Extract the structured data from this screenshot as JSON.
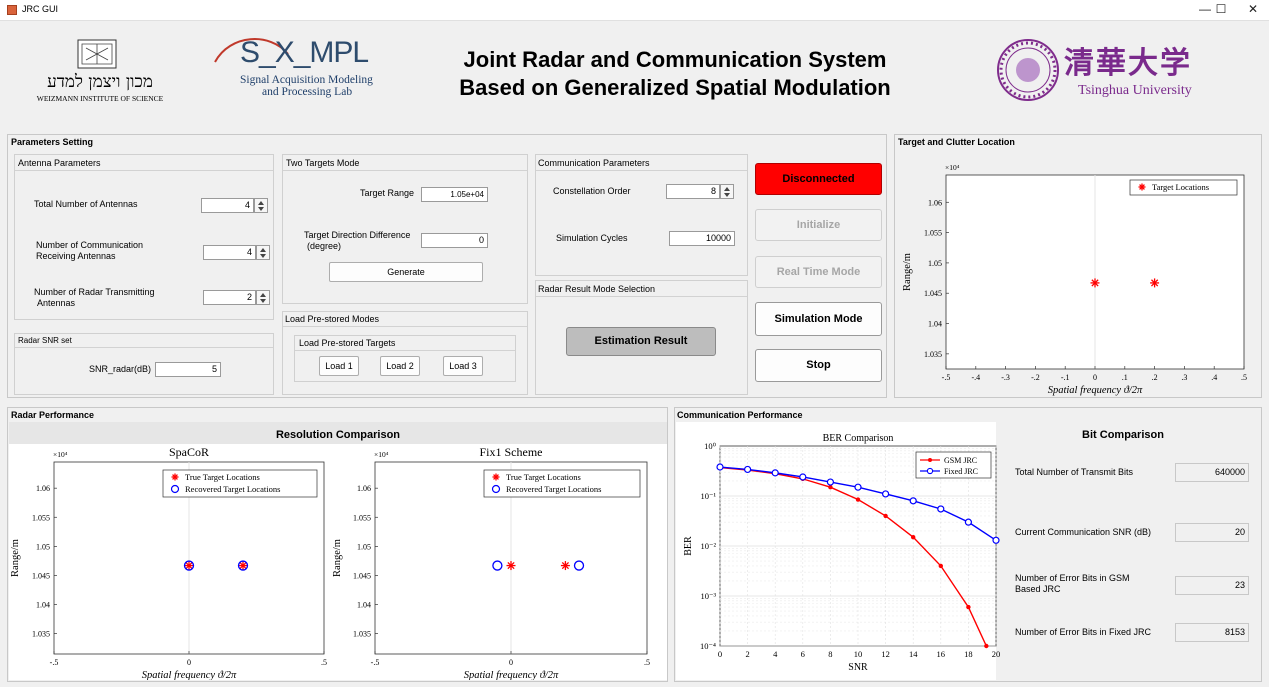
{
  "window": {
    "title": "JRC GUI",
    "minimize_glyph": "—",
    "maximize_glyph": "☐",
    "close_glyph": "✕"
  },
  "header": {
    "title_line1": "Joint Radar and Communication System",
    "title_line2": "Based on Generalized Spatial Modulation",
    "weizmann": {
      "hebrew": "מכון ויצמן למדע",
      "english": "WEIZMANN INSTITUTE OF SCIENCE"
    },
    "sampl": {
      "logo_text": "S_X_MPL",
      "line1": "Signal Acquisition Modeling",
      "line2": "and Processing Lab"
    },
    "tsinghua": {
      "chinese": "清華大学",
      "english": "Tsinghua University"
    }
  },
  "params": {
    "title": "Parameters Setting",
    "antenna": {
      "title": "Antenna Parameters",
      "total_label": "Total Number of Antennas",
      "total_value": "4",
      "comm_label_1": "Number of Communication",
      "comm_label_2": "Receiving Antennas",
      "comm_value": "4",
      "radar_label_1": "Number of Radar Transmitting",
      "radar_label_2": "Antennas",
      "radar_value": "2"
    },
    "snr": {
      "title": "Radar SNR set",
      "label": "SNR_radar(dB)",
      "value": "5"
    },
    "two_targets": {
      "title": "Two Targets Mode",
      "range_label": "Target Range",
      "range_value": "1.05e+04",
      "dir_label_1": "Target Direction Difference",
      "dir_label_2": "(degree)",
      "dir_value": "0",
      "generate_label": "Generate"
    },
    "prestored": {
      "title": "Load Pre-stored Modes",
      "inner_title": "Load Pre-stored Targets",
      "load1": "Load 1",
      "load2": "Load 2",
      "load3": "Load 3"
    },
    "comm": {
      "title": "Communication Parameters",
      "constellation_label": "Constellation Order",
      "constellation_value": "8",
      "cycles_label": "Simulation Cycles",
      "cycles_value": "10000"
    },
    "radar_mode": {
      "title": "Radar Result Mode Selection",
      "estimation_label": "Estimation Result"
    }
  },
  "controls": {
    "disconnected": "Disconnected",
    "initialize": "Initialize",
    "realtime": "Real Time Mode",
    "simulation": "Simulation Mode",
    "stop": "Stop",
    "disconnected_color": "#ff0000"
  },
  "target_clutter": {
    "title": "Target and Clutter Location"
  },
  "radar_perf": {
    "title": "Radar Performance",
    "resolution_title": "Resolution Comparison"
  },
  "comm_perf": {
    "title": "Communication Performance",
    "bit_comparison_title": "Bit Comparison",
    "total_bits_label": "Total Number of Transmit Bits",
    "total_bits_value": "640000",
    "snr_label": "Current Communication SNR (dB)",
    "snr_value": "20",
    "gsm_err_label_1": "Number of Error Bits in GSM",
    "gsm_err_label_2": "Based JRC",
    "gsm_err_value": "23",
    "fixed_err_label": "Number of Error Bits in Fixed JRC",
    "fixed_err_value": "8153"
  },
  "chart_data": [
    {
      "type": "scatter",
      "title": "",
      "xlabel": "Spatial frequency ϑ/2π",
      "ylabel": "Range/m",
      "y_multiplier_label": "×10⁴",
      "xlim": [
        -0.5,
        0.5
      ],
      "ylim": [
        1.0325,
        1.0645
      ],
      "xticks": [
        -0.5,
        -0.4,
        -0.3,
        -0.2,
        -0.1,
        0,
        0.1,
        0.2,
        0.3,
        0.4,
        0.5
      ],
      "yticks": [
        1.035,
        1.04,
        1.045,
        1.05,
        1.055,
        1.06
      ],
      "legend": {
        "position": "top-right"
      },
      "series": [
        {
          "name": "Target Locations",
          "marker": "asterisk",
          "color": "#ff0000",
          "x": [
            0,
            0.2
          ],
          "y": [
            1.0467,
            1.0467
          ]
        }
      ]
    },
    {
      "type": "scatter",
      "title": "SpaCoR",
      "xlabel": "Spatial frequency ϑ/2π",
      "ylabel": "Range/m",
      "y_multiplier_label": "×10⁴",
      "xlim": [
        -0.5,
        0.5
      ],
      "ylim": [
        1.0315,
        1.0645
      ],
      "xticks": [
        -0.5,
        0,
        0.5
      ],
      "yticks": [
        1.035,
        1.04,
        1.045,
        1.05,
        1.055,
        1.06
      ],
      "legend": {
        "position": "top-right"
      },
      "series": [
        {
          "name": "True Target Locations",
          "marker": "asterisk",
          "color": "#ff0000",
          "x": [
            0,
            0.2
          ],
          "y": [
            1.0467,
            1.0467
          ]
        },
        {
          "name": "Recovered Target Locations",
          "marker": "circle",
          "color": "#0000ff",
          "x": [
            0,
            0.2
          ],
          "y": [
            1.0467,
            1.0467
          ]
        }
      ]
    },
    {
      "type": "scatter",
      "title": "Fix1 Scheme",
      "xlabel": "Spatial frequency ϑ/2π",
      "ylabel": "Range/m",
      "y_multiplier_label": "×10⁴",
      "xlim": [
        -0.5,
        0.5
      ],
      "ylim": [
        1.0315,
        1.0645
      ],
      "xticks": [
        -0.5,
        0,
        0.5
      ],
      "yticks": [
        1.035,
        1.04,
        1.045,
        1.05,
        1.055,
        1.06
      ],
      "legend": {
        "position": "top-right"
      },
      "series": [
        {
          "name": "True Target Locations",
          "marker": "asterisk",
          "color": "#ff0000",
          "x": [
            0,
            0.2
          ],
          "y": [
            1.0467,
            1.0467
          ]
        },
        {
          "name": "Recovered Target Locations",
          "marker": "circle",
          "color": "#0000ff",
          "x": [
            -0.05,
            0.25
          ],
          "y": [
            1.0467,
            1.0467
          ]
        }
      ]
    },
    {
      "type": "line",
      "title": "BER Comparison",
      "xlabel": "SNR",
      "ylabel": "BER",
      "xlim": [
        0,
        20
      ],
      "ylim": [
        0.0001,
        1
      ],
      "yscale": "log",
      "xticks": [
        0,
        2,
        4,
        6,
        8,
        10,
        12,
        14,
        16,
        18,
        20
      ],
      "ytick_labels": [
        "10⁰",
        "10⁻¹",
        "10⁻²",
        "10⁻³",
        "10⁻⁴"
      ],
      "legend": {
        "position": "top-right"
      },
      "grid": true,
      "series": [
        {
          "name": "GSM JRC",
          "marker": "dot",
          "color": "#ff0000",
          "x": [
            0,
            2,
            4,
            6,
            8,
            10,
            12,
            14,
            16,
            18,
            19.3
          ],
          "y": [
            0.37,
            0.33,
            0.28,
            0.22,
            0.15,
            0.085,
            0.04,
            0.015,
            0.004,
            0.0006,
            0.0001
          ]
        },
        {
          "name": "Fixed JRC",
          "marker": "circle",
          "color": "#0000ff",
          "x": [
            0,
            2,
            4,
            6,
            8,
            10,
            12,
            14,
            16,
            18,
            20
          ],
          "y": [
            0.38,
            0.34,
            0.29,
            0.24,
            0.19,
            0.15,
            0.11,
            0.08,
            0.055,
            0.03,
            0.013
          ]
        }
      ]
    }
  ]
}
